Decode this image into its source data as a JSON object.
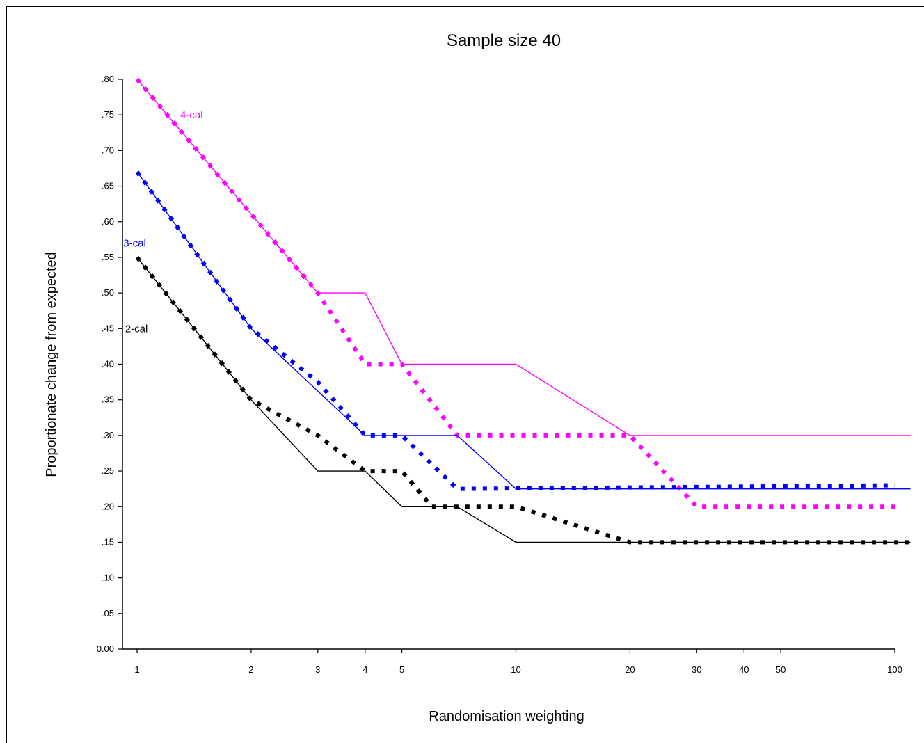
{
  "chart_data": {
    "type": "line",
    "title": "Sample size 40",
    "xlabel": "Randomisation weighting",
    "ylabel": "Proportionate change from expected",
    "x_scale": "log",
    "xlim": [
      0.88,
      100
    ],
    "ylim": [
      0,
      0.8
    ],
    "xticks": [
      1,
      2,
      3,
      4,
      5,
      10,
      20,
      30,
      40,
      50,
      100
    ],
    "xtick_labels": [
      "1",
      "2",
      "3",
      "4",
      "5",
      "10",
      "20",
      "30",
      "40",
      "50",
      "100"
    ],
    "yticks": [
      0,
      0.05,
      0.1,
      0.15,
      0.2,
      0.25,
      0.3,
      0.35,
      0.4,
      0.45,
      0.5,
      0.55,
      0.6,
      0.65,
      0.7,
      0.75,
      0.8
    ],
    "ytick_labels": [
      "0.00",
      ".05",
      ".10",
      ".15",
      ".20",
      ".25",
      ".30",
      ".35",
      ".40",
      ".45",
      ".50",
      ".55",
      ".60",
      ".65",
      ".70",
      ".75",
      ".80"
    ],
    "series": [
      {
        "name": "4-cal",
        "color": "#ff00ff",
        "style": "solid",
        "points": [
          [
            1,
            0.8
          ],
          [
            3,
            0.5
          ],
          [
            4,
            0.5
          ],
          [
            5,
            0.4
          ],
          [
            10,
            0.4
          ],
          [
            20,
            0.3
          ],
          [
            110,
            0.3
          ]
        ]
      },
      {
        "name": "4-cal",
        "color": "#ff00ff",
        "style": "dotted",
        "points": [
          [
            1,
            0.8
          ],
          [
            3,
            0.5
          ],
          [
            4,
            0.4
          ],
          [
            5,
            0.4
          ],
          [
            7,
            0.3
          ],
          [
            20,
            0.3
          ],
          [
            30,
            0.2
          ],
          [
            100,
            0.2
          ]
        ]
      },
      {
        "name": "3-cal",
        "color": "#0000ff",
        "style": "solid",
        "points": [
          [
            1,
            0.67
          ],
          [
            2,
            0.45
          ],
          [
            4,
            0.3
          ],
          [
            7,
            0.3
          ],
          [
            10,
            0.225
          ],
          [
            110,
            0.225
          ]
        ]
      },
      {
        "name": "3-cal",
        "color": "#0000ff",
        "style": "dotted",
        "points": [
          [
            1,
            0.67
          ],
          [
            2,
            0.45
          ],
          [
            3,
            0.375
          ],
          [
            4,
            0.3
          ],
          [
            5,
            0.3
          ],
          [
            7,
            0.225
          ],
          [
            100,
            0.23
          ]
        ]
      },
      {
        "name": "2-cal",
        "color": "#000000",
        "style": "solid",
        "points": [
          [
            1,
            0.55
          ],
          [
            2,
            0.35
          ],
          [
            3,
            0.25
          ],
          [
            4,
            0.25
          ],
          [
            5,
            0.2
          ],
          [
            7,
            0.2
          ],
          [
            10,
            0.15
          ],
          [
            110,
            0.15
          ]
        ]
      },
      {
        "name": "2-cal",
        "color": "#000000",
        "style": "dotted",
        "points": [
          [
            1,
            0.55
          ],
          [
            2,
            0.35
          ],
          [
            3,
            0.3
          ],
          [
            4,
            0.25
          ],
          [
            5,
            0.25
          ],
          [
            6,
            0.2
          ],
          [
            10,
            0.2
          ],
          [
            20,
            0.15
          ],
          [
            110,
            0.15
          ]
        ]
      }
    ],
    "annotations": [
      {
        "text": "4-cal",
        "color": "#ff00ff",
        "x": 1.3,
        "y": 0.75
      },
      {
        "text": "3-cal",
        "color": "#0000ff",
        "x": 0.92,
        "y": 0.57
      },
      {
        "text": "2-cal",
        "color": "#000000",
        "x": 0.93,
        "y": 0.45
      }
    ]
  }
}
